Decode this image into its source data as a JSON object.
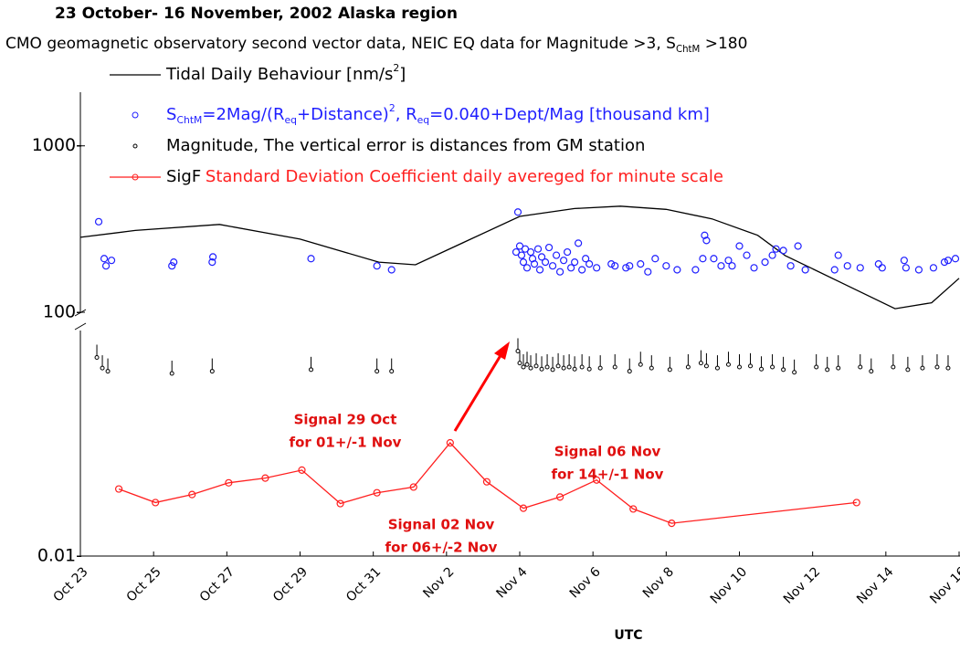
{
  "chart_data": {
    "type": "combo",
    "title": "23 October- 16 November, 2002 Alaska region",
    "subtitle": [
      "CMO geomagnetic observatory second vector data, NEIC EQ data for Magnitude >3, S",
      "ChtM",
      " >180"
    ],
    "xlabel": "UTC",
    "log": true,
    "xlim": [
      0,
      24
    ],
    "xticks": [
      {
        "value": 0,
        "label": "Oct 23"
      },
      {
        "value": 2,
        "label": "Oct 25"
      },
      {
        "value": 4,
        "label": "Oct 27"
      },
      {
        "value": 6,
        "label": "Oct 29"
      },
      {
        "value": 8,
        "label": "Oct 31"
      },
      {
        "value": 10,
        "label": "Nov 2"
      },
      {
        "value": 12,
        "label": "Nov 4"
      },
      {
        "value": 14,
        "label": "Nov 6"
      },
      {
        "value": 16,
        "label": "Nov 8"
      },
      {
        "value": 18,
        "label": "Nov 10"
      },
      {
        "value": 20,
        "label": "Nov 12"
      },
      {
        "value": 22,
        "label": "Nov 14"
      },
      {
        "value": 24,
        "label": "Nov 16"
      }
    ],
    "ylim": [
      100,
      2100
    ],
    "yticks": [
      {
        "value": 100,
        "label": "100-"
      },
      {
        "value": 1000,
        "label": "1000-"
      }
    ],
    "y2lim": [
      0.01,
      0.233
    ],
    "y2ticks": [
      {
        "value": 0.01,
        "label": "0.01-"
      }
    ],
    "series": [
      {
        "name": [
          "Tidal Daily Behaviour [nm/s",
          "2",
          "]"
        ],
        "type": "line",
        "axis": "y",
        "color": "#000000",
        "x": [
          0,
          1.5,
          3.8,
          6,
          8.15,
          9.15,
          10.5,
          12,
          13.5,
          14.75,
          16,
          17.25,
          18.5,
          19.25,
          20.8,
          22.25,
          23.25,
          24
        ],
        "values": [
          282,
          310,
          337,
          275,
          200,
          193,
          265,
          377,
          420,
          434,
          415,
          364,
          290,
          219,
          150,
          105,
          114,
          160
        ]
      },
      {
        "name": [
          "S",
          "ChtM",
          "=2Mag/(R",
          "eq",
          "+Distance)",
          "2",
          ", R",
          "eq",
          "=0.040+Dept/Mag [thousand km]"
        ],
        "type": "scatter",
        "axis": "y",
        "color": "#1f1fff",
        "x": [
          0.5,
          0.65,
          0.7,
          0.85,
          2.5,
          2.55,
          3.6,
          3.62,
          6.3,
          8.1,
          8.5,
          11.95,
          11.9,
          12.0,
          12.05,
          12.1,
          12.15,
          12.2,
          12.3,
          12.35,
          12.4,
          12.5,
          12.55,
          12.6,
          12.7,
          12.8,
          12.9,
          13.0,
          13.1,
          13.2,
          13.3,
          13.4,
          13.5,
          13.6,
          13.7,
          13.8,
          13.9,
          14.1,
          14.5,
          14.6,
          14.9,
          15.0,
          15.3,
          15.5,
          15.7,
          16.0,
          16.3,
          16.8,
          17.0,
          17.05,
          17.1,
          17.3,
          17.5,
          17.7,
          17.8,
          18.0,
          18.2,
          18.4,
          18.7,
          18.9,
          19.0,
          19.2,
          19.4,
          19.6,
          19.8,
          20.6,
          20.7,
          20.95,
          21.3,
          21.8,
          21.9,
          22.5,
          22.55,
          22.9,
          23.3,
          23.6,
          23.7,
          23.9
        ],
        "values": [
          350,
          210,
          190,
          205,
          190,
          200,
          200,
          215,
          210,
          190,
          180,
          400,
          230,
          250,
          220,
          200,
          240,
          185,
          230,
          210,
          195,
          240,
          180,
          215,
          200,
          245,
          190,
          220,
          175,
          205,
          230,
          185,
          200,
          260,
          180,
          210,
          195,
          185,
          195,
          190,
          185,
          190,
          195,
          175,
          210,
          190,
          180,
          180,
          210,
          290,
          270,
          210,
          190,
          205,
          190,
          250,
          220,
          185,
          200,
          220,
          240,
          235,
          190,
          250,
          180,
          180,
          220,
          190,
          185,
          195,
          185,
          205,
          185,
          180,
          185,
          200,
          205,
          210
        ]
      },
      {
        "name": [
          "Magnitude, The vertical error is distances from GM station"
        ],
        "type": "scatter-small",
        "axis": "y2",
        "color": "#000000",
        "x": [
          0.45,
          0.6,
          0.75,
          2.5,
          3.6,
          6.3,
          8.1,
          8.5,
          11.95,
          12.0,
          12.1,
          12.2,
          12.3,
          12.45,
          12.6,
          12.75,
          12.9,
          13.05,
          13.2,
          13.35,
          13.5,
          13.7,
          13.9,
          14.2,
          14.6,
          15.0,
          15.3,
          15.6,
          16.1,
          16.6,
          16.95,
          17.1,
          17.4,
          17.7,
          18.0,
          18.3,
          18.6,
          18.9,
          19.2,
          19.5,
          20.1,
          20.4,
          20.7,
          21.3,
          21.6,
          22.2,
          22.6,
          23.0,
          23.4,
          23.7
        ],
        "values": [
          0.16,
          0.138,
          0.132,
          0.128,
          0.132,
          0.135,
          0.132,
          0.132,
          0.175,
          0.148,
          0.14,
          0.145,
          0.138,
          0.142,
          0.136,
          0.14,
          0.135,
          0.142,
          0.138,
          0.14,
          0.136,
          0.14,
          0.136,
          0.138,
          0.14,
          0.132,
          0.145,
          0.138,
          0.135,
          0.14,
          0.148,
          0.142,
          0.138,
          0.145,
          0.14,
          0.142,
          0.136,
          0.14,
          0.135,
          0.13,
          0.14,
          0.135,
          0.138,
          0.14,
          0.132,
          0.14,
          0.135,
          0.138,
          0.14,
          0.138
        ]
      },
      {
        "name": [
          "SigF",
          "Standard Deviation Coefficient daily avereged for minute scale"
        ],
        "type": "line-marker",
        "axis": "y2",
        "color": "#ff1f1f",
        "x": [
          1.05,
          2.05,
          3.05,
          4.05,
          5.05,
          6.05,
          7.1,
          8.1,
          9.1,
          10.1,
          11.1,
          12.1,
          13.1,
          14.1,
          15.1,
          16.15,
          21.2
        ],
        "values": [
          0.0255,
          0.0211,
          0.0236,
          0.0278,
          0.0297,
          0.0332,
          0.0208,
          0.0242,
          0.0262,
          0.0486,
          0.0282,
          0.0195,
          0.0228,
          0.0289,
          0.0193,
          0.0158,
          0.0211
        ]
      }
    ],
    "annotations": [
      [
        "Signal 29 Oct",
        "for 01+/-1 Nov"
      ],
      [
        "Signal 02 Nov",
        "for 06+/-2 Nov"
      ],
      [
        "Signal 06 Nov",
        "for 14+/-1 Nov"
      ]
    ]
  }
}
